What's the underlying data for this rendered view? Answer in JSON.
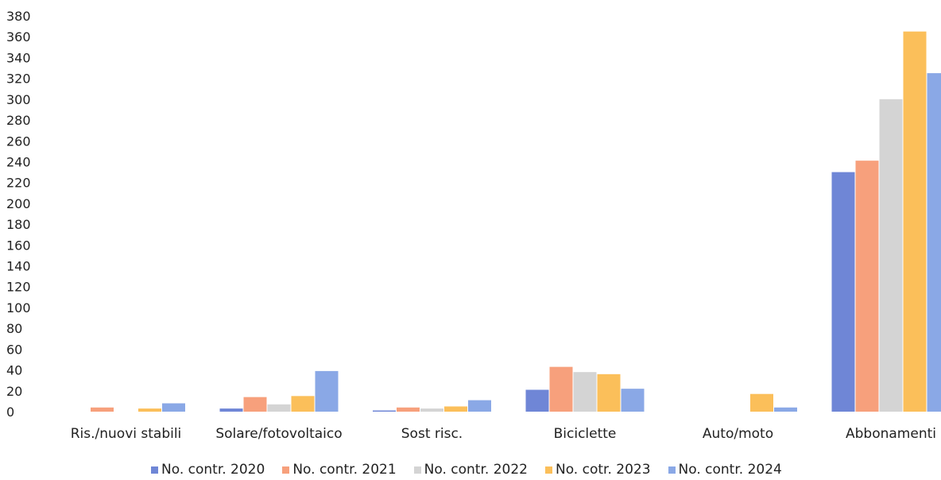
{
  "chart_data": {
    "type": "bar",
    "title": "",
    "xlabel": "",
    "ylabel": "",
    "ylim": [
      0,
      380
    ],
    "yticks": [
      0,
      20,
      40,
      60,
      80,
      100,
      120,
      140,
      160,
      180,
      200,
      220,
      240,
      260,
      280,
      300,
      320,
      340,
      360,
      380
    ],
    "grid": false,
    "legend_position": "bottom",
    "categories": [
      "Ris./nuovi stabili",
      "Solare/fotovoltaico",
      "Sost risc.",
      "Biciclette",
      "Auto/moto",
      "Abbonamenti"
    ],
    "series": [
      {
        "name": "No. contr. 2020",
        "color": "#6f86d6",
        "values": [
          0,
          3,
          1,
          21,
          0,
          230
        ]
      },
      {
        "name": "No. contr. 2021",
        "color": "#f7a07c",
        "values": [
          4,
          14,
          4,
          43,
          0,
          241
        ]
      },
      {
        "name": "No. contr. 2022",
        "color": "#d4d4d4",
        "values": [
          0,
          7,
          3,
          38,
          0,
          300
        ]
      },
      {
        "name": "No. cotr. 2023",
        "color": "#fbbf5a",
        "values": [
          3,
          15,
          5,
          36,
          17,
          365
        ]
      },
      {
        "name": "No. contr. 2024",
        "color": "#8aa8e6",
        "values": [
          8,
          39,
          11,
          22,
          4,
          325
        ]
      }
    ]
  }
}
